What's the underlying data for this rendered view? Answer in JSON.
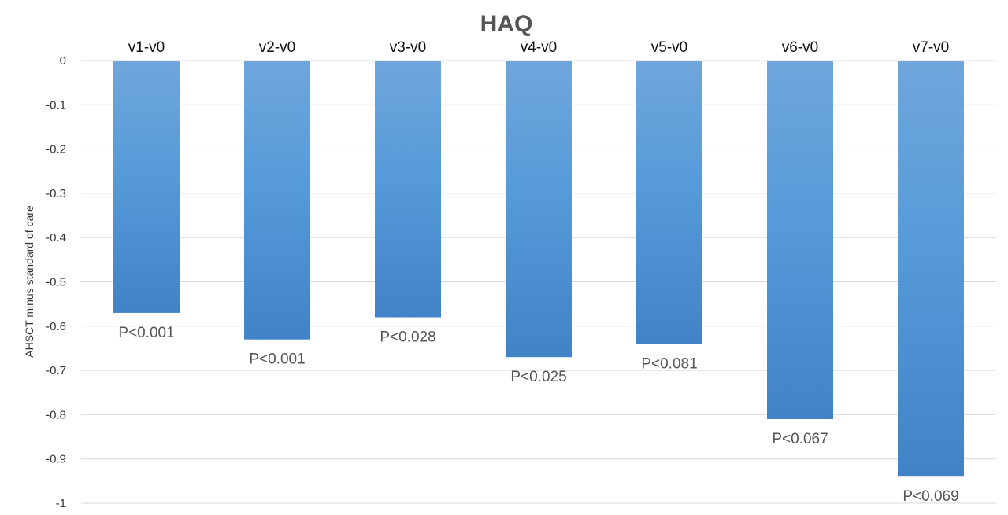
{
  "chart_data": {
    "type": "bar",
    "title": "HAQ",
    "ylabel": "AHSCT minus standard of care",
    "xlabel": "",
    "categories": [
      "v1-v0",
      "v2-v0",
      "v3-v0",
      "v4-v0",
      "v5-v0",
      "v6-v0",
      "v7-v0"
    ],
    "values": [
      -0.57,
      -0.63,
      -0.58,
      -0.67,
      -0.64,
      -0.81,
      -0.94
    ],
    "annotations": [
      "P<0.001",
      "P<0.001",
      "P<0.028",
      "P<0.025",
      "P<0.081",
      "P<0.067",
      "P<0.069"
    ],
    "ylim": [
      -1,
      0
    ],
    "yticks": [
      "0",
      "-0.1",
      "-0.2",
      "-0.3",
      "-0.4",
      "-0.5",
      "-0.6",
      "-0.7",
      "-0.8",
      "-0.9",
      "-1"
    ],
    "yticks_values": [
      0,
      -0.1,
      -0.2,
      -0.3,
      -0.4,
      -0.5,
      -0.6,
      -0.7,
      -0.8,
      -0.9,
      -1
    ],
    "category_axis_position": "top",
    "grid": true,
    "legend": "none",
    "bar_color": "#4a90d4"
  }
}
